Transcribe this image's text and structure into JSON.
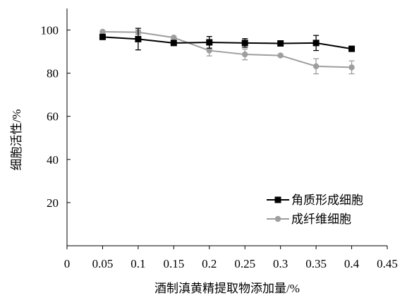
{
  "chart_data": {
    "type": "line",
    "title": "",
    "xlabel": "酒制滇黄精提取物添加量/%",
    "ylabel": "细胞活性/%",
    "xlim": [
      0,
      0.45
    ],
    "ylim": [
      0,
      110
    ],
    "x_ticks": [
      "0",
      "0.05",
      "0.1",
      "0.15",
      "0.2",
      "0.25",
      "0.3",
      "0.35",
      "0.4",
      "0.45"
    ],
    "y_ticks": [
      "20",
      "40",
      "60",
      "80",
      "100"
    ],
    "x": [
      0.05,
      0.1,
      0.15,
      0.2,
      0.25,
      0.3,
      0.35,
      0.4
    ],
    "grid": false,
    "legend_position": "bottom-right",
    "series": [
      {
        "name": "角质形成细胞",
        "color": "#000000",
        "marker": "square",
        "values": [
          96.8,
          95.8,
          94.0,
          94.3,
          94.0,
          93.8,
          94.0,
          91.3
        ],
        "errors": [
          0.8,
          5.0,
          0.8,
          2.7,
          2.0,
          1.2,
          3.5,
          1.0
        ]
      },
      {
        "name": "成纤维细胞",
        "color": "#9e9e9e",
        "marker": "circle",
        "values": [
          99.2,
          99.0,
          96.5,
          90.5,
          88.7,
          88.2,
          83.2,
          82.7
        ],
        "errors": [
          0.5,
          1.0,
          0.5,
          2.5,
          2.5,
          0.5,
          3.5,
          3.0
        ]
      }
    ]
  }
}
